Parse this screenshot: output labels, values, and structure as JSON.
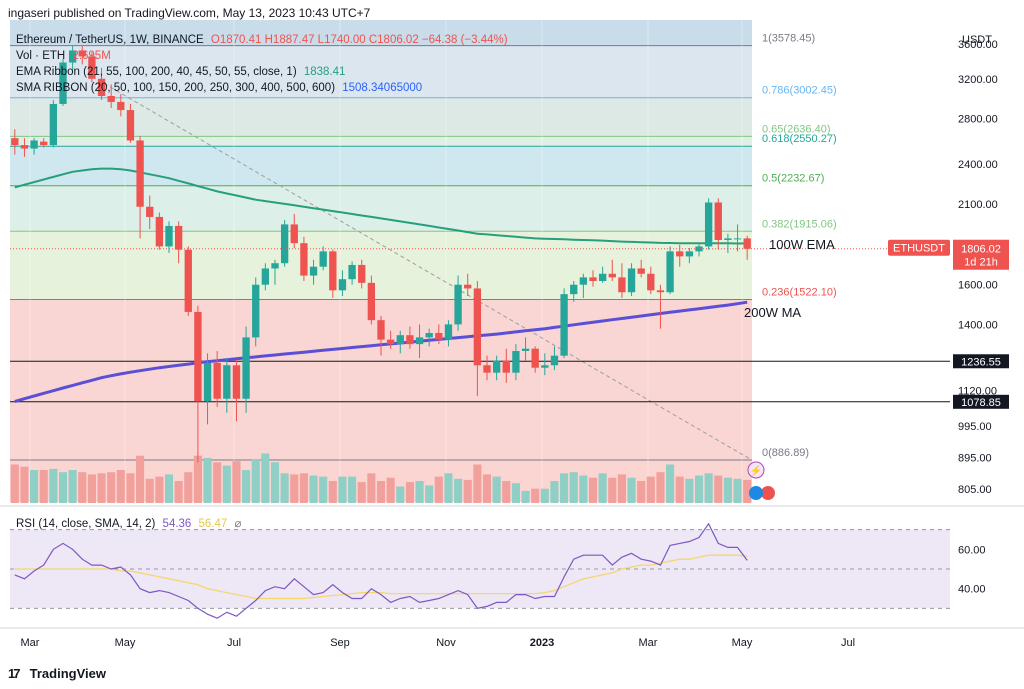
{
  "header": {
    "publisher_line": "ingaseri published on TradingView.com, May 13, 2023 10:43 UTC+7"
  },
  "legend": {
    "symbol": "Ethereum / TetherUS, 1W, BINANCE",
    "ohlc": "O1870.41  H1887.47  L1740.00  C1806.02  −64.38 (−3.44%)",
    "vol_label": "Vol · ETH",
    "vol_value": "2.695M",
    "ema_label": "EMA Ribbon (21, 55, 100, 200, 40, 45, 50, 55, close, 1)",
    "ema_value": "1838.41",
    "sma_label": "SMA RIBBON (20, 50, 100, 150, 200, 250, 300, 400, 500, 600)",
    "sma_value": "1508.34065000",
    "rsi_label": "RSI (14, close, SMA, 14, 2)",
    "rsi_value": "54.36",
    "rsi_sma_value": "56.47"
  },
  "colors": {
    "up": "#26a69a",
    "down": "#ef5350",
    "ema": "#26a07a",
    "sma200": "#5b4fd6",
    "rsi": "#7e57c2",
    "rsi_sma": "#f5d76e",
    "rsi_band": "#ede7f6"
  },
  "branding": {
    "logo_text": "TradingView"
  },
  "chart_data": [
    {
      "type": "candlestick",
      "title": "",
      "y_axis_label": "USDT",
      "y_scale": "log",
      "ylim": [
        770,
        3900
      ],
      "y_ticks": [
        "3600.00",
        "3200.00",
        "2800.00",
        "2400.00",
        "2100.00",
        "1600.00",
        "1400.00",
        "1120.00",
        "995.00",
        "895.00",
        "805.00"
      ],
      "x_ticks": [
        "Mar",
        "May",
        "Jul",
        "Sep",
        "Nov",
        "2023",
        "Mar",
        "May",
        "Jul"
      ],
      "fib_levels": [
        {
          "label": "1(3578.45)",
          "value": 3578.45
        },
        {
          "label": "0.786(3002.45)",
          "value": 3002.45
        },
        {
          "label": "0.65(2636.40)",
          "value": 2636.4
        },
        {
          "label": "0.618(2550.27)",
          "value": 2550.27
        },
        {
          "label": "0.5(2232.67)",
          "value": 2232.67
        },
        {
          "label": "0.382(1915.06)",
          "value": 1915.06
        },
        {
          "label": "0.236(1522.10)",
          "value": 1522.1
        },
        {
          "label": "0(886.89)",
          "value": 886.89
        }
      ],
      "horizontal_lines": [
        {
          "label": "1236.55",
          "value": 1236.55
        },
        {
          "label": "1078.85",
          "value": 1078.85
        }
      ],
      "annotations": [
        "100W EMA",
        "200W MA"
      ],
      "last_price_tag": {
        "symbol": "ETHUSDT",
        "price": "1806.02",
        "countdown": "1d 21h"
      },
      "candles": [
        {
          "o": 2620,
          "h": 2700,
          "l": 2480,
          "c": 2560
        },
        {
          "o": 2560,
          "h": 2620,
          "l": 2460,
          "c": 2530
        },
        {
          "o": 2530,
          "h": 2620,
          "l": 2480,
          "c": 2600
        },
        {
          "o": 2590,
          "h": 2620,
          "l": 2540,
          "c": 2560
        },
        {
          "o": 2560,
          "h": 2980,
          "l": 2540,
          "c": 2940
        },
        {
          "o": 2940,
          "h": 3420,
          "l": 2920,
          "c": 3380
        },
        {
          "o": 3380,
          "h": 3580,
          "l": 3300,
          "c": 3520
        },
        {
          "o": 3520,
          "h": 3578,
          "l": 3360,
          "c": 3450
        },
        {
          "o": 3450,
          "h": 3500,
          "l": 3160,
          "c": 3200
        },
        {
          "o": 3200,
          "h": 3320,
          "l": 2980,
          "c": 3020
        },
        {
          "o": 3020,
          "h": 3140,
          "l": 2900,
          "c": 2960
        },
        {
          "o": 2960,
          "h": 3040,
          "l": 2820,
          "c": 2880
        },
        {
          "o": 2880,
          "h": 2940,
          "l": 2580,
          "c": 2600
        },
        {
          "o": 2600,
          "h": 2640,
          "l": 1870,
          "c": 2080
        },
        {
          "o": 2080,
          "h": 2160,
          "l": 1930,
          "c": 2010
        },
        {
          "o": 2010,
          "h": 2040,
          "l": 1800,
          "c": 1820
        },
        {
          "o": 1820,
          "h": 1980,
          "l": 1780,
          "c": 1950
        },
        {
          "o": 1950,
          "h": 1980,
          "l": 1720,
          "c": 1800
        },
        {
          "o": 1800,
          "h": 1820,
          "l": 1440,
          "c": 1460
        },
        {
          "o": 1460,
          "h": 1490,
          "l": 880,
          "c": 1080
        },
        {
          "o": 1080,
          "h": 1270,
          "l": 1000,
          "c": 1230
        },
        {
          "o": 1230,
          "h": 1280,
          "l": 1060,
          "c": 1090
        },
        {
          "o": 1090,
          "h": 1250,
          "l": 1040,
          "c": 1220
        },
        {
          "o": 1220,
          "h": 1240,
          "l": 1010,
          "c": 1090
        },
        {
          "o": 1090,
          "h": 1390,
          "l": 1040,
          "c": 1340
        },
        {
          "o": 1340,
          "h": 1640,
          "l": 1300,
          "c": 1600
        },
        {
          "o": 1600,
          "h": 1720,
          "l": 1570,
          "c": 1690
        },
        {
          "o": 1690,
          "h": 1740,
          "l": 1600,
          "c": 1720
        },
        {
          "o": 1720,
          "h": 1990,
          "l": 1700,
          "c": 1960
        },
        {
          "o": 1960,
          "h": 2030,
          "l": 1810,
          "c": 1840
        },
        {
          "o": 1840,
          "h": 1880,
          "l": 1620,
          "c": 1650
        },
        {
          "o": 1650,
          "h": 1740,
          "l": 1600,
          "c": 1700
        },
        {
          "o": 1700,
          "h": 1820,
          "l": 1680,
          "c": 1790
        },
        {
          "o": 1790,
          "h": 1800,
          "l": 1530,
          "c": 1570
        },
        {
          "o": 1570,
          "h": 1680,
          "l": 1540,
          "c": 1630
        },
        {
          "o": 1630,
          "h": 1730,
          "l": 1600,
          "c": 1710
        },
        {
          "o": 1710,
          "h": 1740,
          "l": 1580,
          "c": 1610
        },
        {
          "o": 1610,
          "h": 1650,
          "l": 1400,
          "c": 1420
        },
        {
          "o": 1420,
          "h": 1440,
          "l": 1260,
          "c": 1330
        },
        {
          "o": 1330,
          "h": 1370,
          "l": 1290,
          "c": 1310
        },
        {
          "o": 1310,
          "h": 1370,
          "l": 1270,
          "c": 1350
        },
        {
          "o": 1350,
          "h": 1390,
          "l": 1290,
          "c": 1310
        },
        {
          "o": 1310,
          "h": 1400,
          "l": 1250,
          "c": 1340
        },
        {
          "o": 1340,
          "h": 1380,
          "l": 1300,
          "c": 1360
        },
        {
          "o": 1360,
          "h": 1400,
          "l": 1310,
          "c": 1330
        },
        {
          "o": 1330,
          "h": 1420,
          "l": 1300,
          "c": 1400
        },
        {
          "o": 1400,
          "h": 1650,
          "l": 1370,
          "c": 1600
        },
        {
          "o": 1600,
          "h": 1660,
          "l": 1540,
          "c": 1580
        },
        {
          "o": 1580,
          "h": 1620,
          "l": 1100,
          "c": 1220
        },
        {
          "o": 1220,
          "h": 1260,
          "l": 1160,
          "c": 1190
        },
        {
          "o": 1190,
          "h": 1260,
          "l": 1160,
          "c": 1240
        },
        {
          "o": 1240,
          "h": 1290,
          "l": 1150,
          "c": 1190
        },
        {
          "o": 1190,
          "h": 1310,
          "l": 1160,
          "c": 1280
        },
        {
          "o": 1280,
          "h": 1340,
          "l": 1240,
          "c": 1290
        },
        {
          "o": 1290,
          "h": 1300,
          "l": 1190,
          "c": 1210
        },
        {
          "o": 1210,
          "h": 1270,
          "l": 1180,
          "c": 1220
        },
        {
          "o": 1220,
          "h": 1300,
          "l": 1200,
          "c": 1260
        },
        {
          "o": 1260,
          "h": 1580,
          "l": 1250,
          "c": 1550
        },
        {
          "o": 1550,
          "h": 1620,
          "l": 1510,
          "c": 1600
        },
        {
          "o": 1600,
          "h": 1660,
          "l": 1530,
          "c": 1640
        },
        {
          "o": 1640,
          "h": 1680,
          "l": 1590,
          "c": 1620
        },
        {
          "o": 1620,
          "h": 1700,
          "l": 1610,
          "c": 1660
        },
        {
          "o": 1660,
          "h": 1740,
          "l": 1620,
          "c": 1640
        },
        {
          "o": 1640,
          "h": 1720,
          "l": 1530,
          "c": 1560
        },
        {
          "o": 1560,
          "h": 1720,
          "l": 1540,
          "c": 1690
        },
        {
          "o": 1690,
          "h": 1740,
          "l": 1640,
          "c": 1660
        },
        {
          "o": 1660,
          "h": 1700,
          "l": 1550,
          "c": 1570
        },
        {
          "o": 1570,
          "h": 1600,
          "l": 1380,
          "c": 1560
        },
        {
          "o": 1560,
          "h": 1820,
          "l": 1550,
          "c": 1790
        },
        {
          "o": 1790,
          "h": 1830,
          "l": 1700,
          "c": 1760
        },
        {
          "o": 1760,
          "h": 1810,
          "l": 1720,
          "c": 1790
        },
        {
          "o": 1790,
          "h": 1840,
          "l": 1760,
          "c": 1820
        },
        {
          "o": 1820,
          "h": 2140,
          "l": 1800,
          "c": 2110
        },
        {
          "o": 2110,
          "h": 2140,
          "l": 1800,
          "c": 1860
        },
        {
          "o": 1860,
          "h": 1900,
          "l": 1780,
          "c": 1870
        },
        {
          "o": 1870,
          "h": 1960,
          "l": 1790,
          "c": 1870
        },
        {
          "o": 1870,
          "h": 1887,
          "l": 1740,
          "c": 1806
        }
      ],
      "volume": [
        0.35,
        0.33,
        0.3,
        0.3,
        0.31,
        0.28,
        0.3,
        0.28,
        0.26,
        0.27,
        0.28,
        0.3,
        0.27,
        0.43,
        0.22,
        0.24,
        0.26,
        0.2,
        0.28,
        0.43,
        0.41,
        0.37,
        0.34,
        0.38,
        0.3,
        0.4,
        0.45,
        0.37,
        0.27,
        0.26,
        0.27,
        0.25,
        0.24,
        0.2,
        0.24,
        0.24,
        0.19,
        0.27,
        0.2,
        0.23,
        0.15,
        0.19,
        0.2,
        0.16,
        0.24,
        0.27,
        0.22,
        0.21,
        0.35,
        0.26,
        0.24,
        0.2,
        0.18,
        0.11,
        0.13,
        0.13,
        0.2,
        0.27,
        0.28,
        0.25,
        0.23,
        0.27,
        0.23,
        0.26,
        0.23,
        0.2,
        0.24,
        0.28,
        0.35,
        0.24,
        0.22,
        0.25,
        0.27,
        0.25,
        0.23,
        0.22,
        0.21
      ],
      "ema100": [
        2220,
        2240,
        2260,
        2280,
        2300,
        2320,
        2340,
        2350,
        2360,
        2365,
        2365,
        2360,
        2350,
        2335,
        2320,
        2305,
        2290,
        2270,
        2250,
        2230,
        2210,
        2190,
        2175,
        2160,
        2145,
        2130,
        2120,
        2110,
        2100,
        2090,
        2080,
        2070,
        2060,
        2050,
        2040,
        2030,
        2020,
        2010,
        2000,
        1990,
        1980,
        1970,
        1960,
        1950,
        1940,
        1930,
        1920,
        1910,
        1900,
        1895,
        1890,
        1885,
        1880,
        1875,
        1870,
        1868,
        1866,
        1864,
        1862,
        1860,
        1858,
        1856,
        1853,
        1850,
        1848,
        1846,
        1844,
        1842,
        1841,
        1840,
        1840,
        1840,
        1840,
        1839,
        1839,
        1838,
        1838.41
      ],
      "sma200": [
        1080,
        1090,
        1100,
        1110,
        1120,
        1130,
        1140,
        1150,
        1160,
        1170,
        1178,
        1185,
        1192,
        1198,
        1204,
        1210,
        1215,
        1220,
        1225,
        1230,
        1235,
        1239,
        1243,
        1247,
        1251,
        1255,
        1259,
        1263,
        1267,
        1271,
        1275,
        1279,
        1283,
        1287,
        1291,
        1295,
        1299,
        1303,
        1307,
        1311,
        1315,
        1319,
        1323,
        1327,
        1331,
        1335,
        1339,
        1343,
        1347,
        1351,
        1355,
        1360,
        1365,
        1370,
        1375,
        1380,
        1386,
        1392,
        1398,
        1404,
        1410,
        1416,
        1422,
        1428,
        1434,
        1440,
        1446,
        1452,
        1458,
        1464,
        1470,
        1476,
        1482,
        1488,
        1494,
        1501,
        1508.34
      ]
    },
    {
      "type": "line",
      "title": "",
      "ylim": [
        20,
        80
      ],
      "y_ticks": [
        "60.00",
        "40.00"
      ],
      "series": [
        {
          "name": "RSI",
          "values": [
            47,
            45,
            49,
            52,
            60,
            63,
            60,
            55,
            52,
            52,
            50,
            51,
            47,
            40,
            38,
            39,
            38,
            36,
            34,
            30,
            27,
            25,
            28,
            26,
            30,
            34,
            39,
            41,
            40,
            45,
            41,
            37,
            38,
            42,
            38,
            35,
            35,
            40,
            37,
            33,
            35,
            36,
            33,
            34,
            35,
            37,
            39,
            37,
            30,
            31,
            33,
            33,
            37,
            37,
            35,
            36,
            36,
            46,
            55,
            57,
            57,
            57,
            52,
            56,
            58,
            55,
            54,
            52,
            62,
            63,
            64,
            66,
            73,
            63,
            61,
            61,
            54.36
          ]
        },
        {
          "name": "RSI SMA",
          "values": [
            50,
            50,
            50,
            50,
            50,
            50,
            50,
            50,
            50,
            50,
            50,
            49,
            49,
            48,
            47,
            46,
            45,
            44,
            43,
            42,
            40,
            39,
            38,
            37,
            36,
            35,
            35,
            35,
            35,
            35,
            35,
            35.5,
            36,
            36.5,
            37,
            37.5,
            38,
            38,
            38,
            37.5,
            37.5,
            37.5,
            37.5,
            37.5,
            37.5,
            37.5,
            37.5,
            37.5,
            37.5,
            37.5,
            37.5,
            37.5,
            37.5,
            37.5,
            37.5,
            38,
            39,
            41,
            43,
            45,
            46,
            47,
            48,
            50,
            51,
            52,
            52,
            53,
            54,
            55,
            55,
            56,
            57,
            57,
            57,
            57,
            56.47
          ]
        }
      ]
    }
  ]
}
